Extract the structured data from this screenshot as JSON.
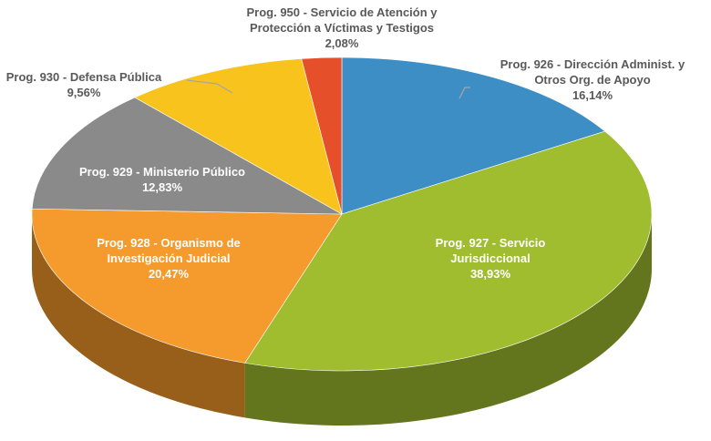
{
  "chart_data": {
    "type": "pie",
    "categories": [
      "Prog. 926 - Dirección Administ. y Otros Org. de Apoyo",
      "Prog. 927 - Servicio Jurisdiccional",
      "Prog. 928 - Organismo de Investigación Judicial",
      "Prog. 929 - Ministerio Público",
      "Prog. 930 - Defensa Pública",
      "Prog. 950 - Servicio de Atención y Protección a Víctimas y Testigos"
    ],
    "values": [
      16.14,
      38.93,
      20.47,
      12.83,
      9.56,
      2.08
    ],
    "value_labels": [
      "16,14%",
      "38,93%",
      "20,47%",
      "12,83%",
      "9,56%",
      "2,08%"
    ],
    "colors": [
      "#3e8ec6",
      "#9fbd2f",
      "#f59a2c",
      "#8a8a8a",
      "#f7c31c",
      "#e5502b"
    ]
  }
}
